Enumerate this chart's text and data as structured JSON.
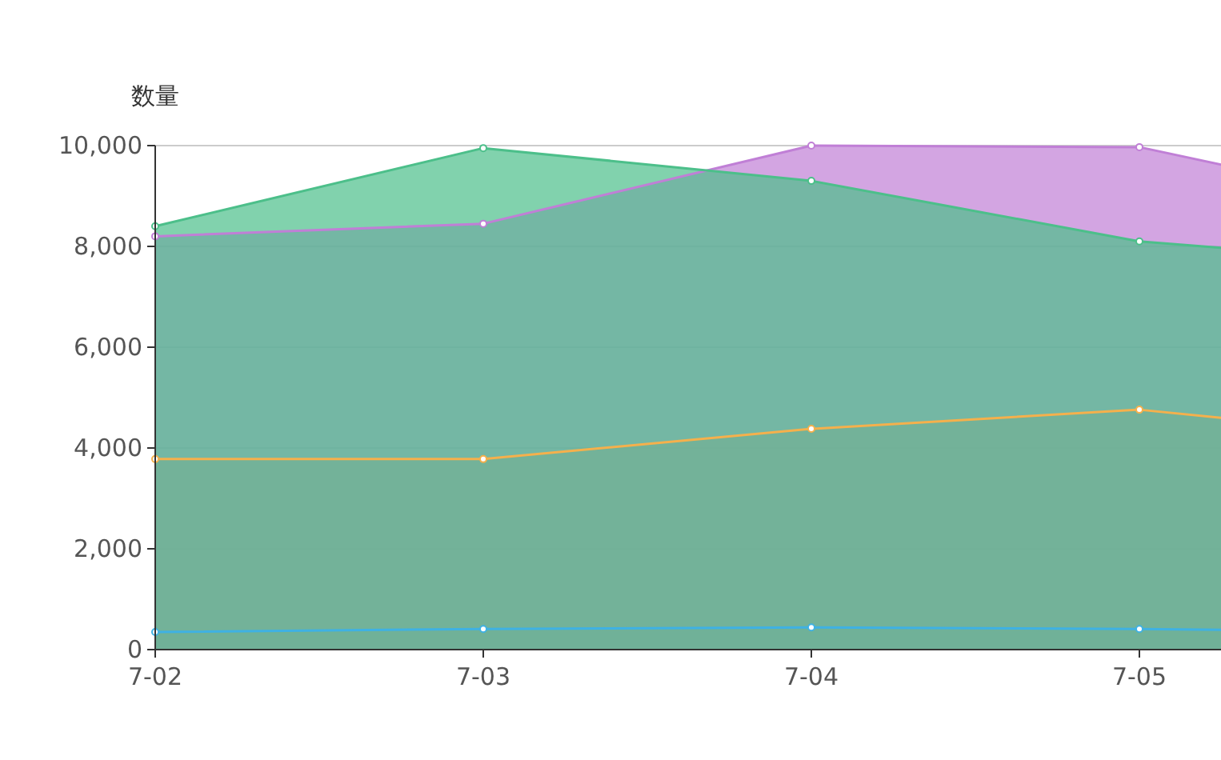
{
  "chart_data": {
    "type": "area",
    "ylabel": "数量",
    "categories": [
      "7-02",
      "7-03",
      "7-04",
      "7-05",
      null
    ],
    "series": [
      {
        "color": "#3fb1e3",
        "values": [
          350,
          410,
          440,
          410,
          340
        ]
      },
      {
        "color": "#f5b04c",
        "values": [
          3780,
          3780,
          4380,
          4760,
          4120
        ]
      },
      {
        "color": "#c07fd6",
        "values": [
          8200,
          8450,
          10000,
          9970,
          8570
        ]
      },
      {
        "color": "#4cbf8a",
        "values": [
          8400,
          9950,
          9300,
          8100,
          7580
        ]
      }
    ],
    "ylim": [
      0,
      10000
    ],
    "yticks": [
      {
        "value": 0,
        "label": "0"
      },
      {
        "value": 2000,
        "label": "2,000"
      },
      {
        "value": 4000,
        "label": "4,000"
      },
      {
        "value": 6000,
        "label": "6,000"
      },
      {
        "value": 8000,
        "label": "8,000"
      },
      {
        "value": 10000,
        "label": "10,000"
      }
    ],
    "grid": "y",
    "marker": "circle"
  }
}
